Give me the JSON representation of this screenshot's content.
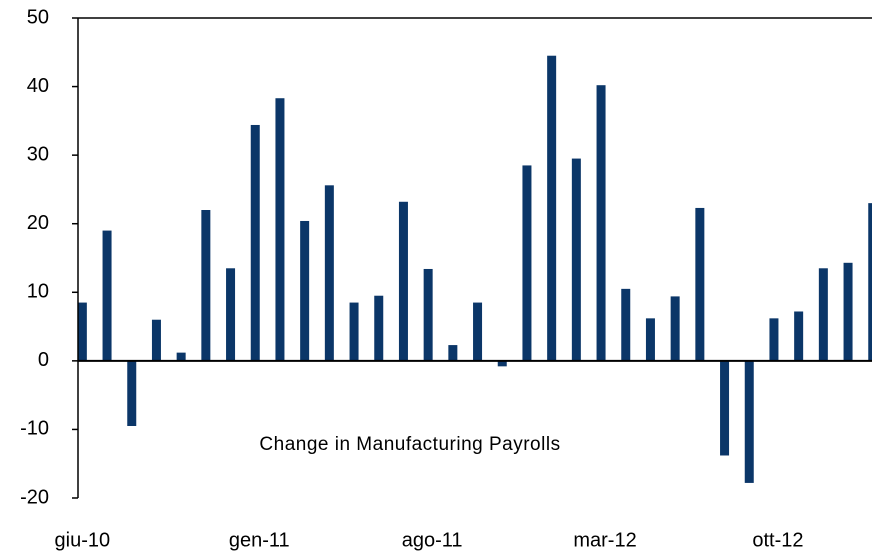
{
  "chart_data": {
    "type": "bar",
    "annotation": "Change in Manufacturing Payrolls",
    "categories": [
      "giu-10",
      null,
      null,
      null,
      null,
      null,
      null,
      "gen-11",
      null,
      null,
      null,
      null,
      null,
      null,
      "ago-11",
      null,
      null,
      null,
      null,
      null,
      null,
      "mar-12",
      null,
      null,
      null,
      null,
      null,
      null,
      "ott-12",
      null,
      null,
      null,
      null
    ],
    "values": [
      8.5,
      19,
      -9.5,
      6,
      1.2,
      22,
      13.5,
      34.4,
      38.3,
      20.4,
      25.6,
      8.5,
      9.5,
      23.2,
      13.4,
      2.3,
      8.5,
      -0.8,
      28.5,
      44.5,
      29.5,
      40.2,
      10.5,
      6.2,
      9.4,
      22.3,
      -13.8,
      -17.8,
      6.2,
      7.2,
      13.5,
      14.3,
      23
    ],
    "color": "#0b3668",
    "ylim": [
      -20,
      50
    ],
    "yticks": [
      -20,
      -10,
      0,
      10,
      20,
      30,
      40,
      50
    ]
  }
}
